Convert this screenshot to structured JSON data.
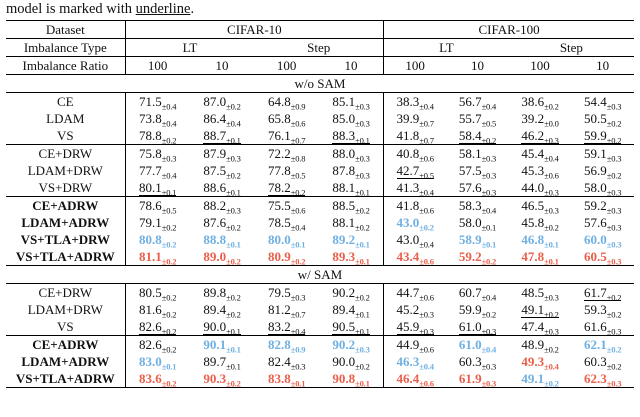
{
  "caption": {
    "prefix": "model is marked with ",
    "underlined_word": "underline",
    "suffix": "."
  },
  "colors": {
    "best": "#eb5e49",
    "second": "#6fb0e3"
  },
  "header": {
    "dataset_label": "Dataset",
    "datasets": [
      "CIFAR-10",
      "CIFAR-100"
    ],
    "imbalance_type_label": "Imbalance Type",
    "imbalance_types": [
      "LT",
      "Step",
      "LT",
      "Step"
    ],
    "imbalance_ratio_label": "Imbalance Ratio",
    "imbalance_ratios": [
      "100",
      "10",
      "100",
      "10",
      "100",
      "10",
      "100",
      "10"
    ]
  },
  "sections": [
    {
      "title": "w/o SAM",
      "groups": [
        {
          "rows": [
            {
              "label": "CE",
              "bold": false,
              "cells": [
                {
                  "v": "71.5",
                  "e": "0.4",
                  "m": ""
                },
                {
                  "v": "87.0",
                  "e": "0.2",
                  "m": ""
                },
                {
                  "v": "64.8",
                  "e": "0.9",
                  "m": ""
                },
                {
                  "v": "85.1",
                  "e": "0.3",
                  "m": ""
                },
                {
                  "v": "38.3",
                  "e": "0.4",
                  "m": ""
                },
                {
                  "v": "56.7",
                  "e": "0.4",
                  "m": ""
                },
                {
                  "v": "38.6",
                  "e": "0.2",
                  "m": ""
                },
                {
                  "v": "54.4",
                  "e": "0.3",
                  "m": ""
                }
              ]
            },
            {
              "label": "LDAM",
              "bold": false,
              "cells": [
                {
                  "v": "73.8",
                  "e": "0.4",
                  "m": ""
                },
                {
                  "v": "86.4",
                  "e": "0.4",
                  "m": ""
                },
                {
                  "v": "65.8",
                  "e": "0.6",
                  "m": ""
                },
                {
                  "v": "85.0",
                  "e": "0.3",
                  "m": ""
                },
                {
                  "v": "39.9",
                  "e": "0.7",
                  "m": ""
                },
                {
                  "v": "55.7",
                  "e": "0.5",
                  "m": ""
                },
                {
                  "v": "39.2",
                  "e": "0.0",
                  "m": ""
                },
                {
                  "v": "50.5",
                  "e": "0.2",
                  "m": ""
                }
              ]
            },
            {
              "label": "VS",
              "bold": false,
              "cells": [
                {
                  "v": "78.8",
                  "e": "0.2",
                  "m": ""
                },
                {
                  "v": "88.7",
                  "e": "0.1",
                  "m": "u"
                },
                {
                  "v": "76.1",
                  "e": "0.7",
                  "m": ""
                },
                {
                  "v": "88.3",
                  "e": "0.1",
                  "m": "u"
                },
                {
                  "v": "41.8",
                  "e": "0.7",
                  "m": ""
                },
                {
                  "v": "58.4",
                  "e": "0.2",
                  "m": "u"
                },
                {
                  "v": "46.2",
                  "e": "0.3",
                  "m": "u"
                },
                {
                  "v": "59.9",
                  "e": "0.2",
                  "m": "u"
                }
              ]
            }
          ]
        },
        {
          "rows": [
            {
              "label": "CE+DRW",
              "bold": false,
              "cells": [
                {
                  "v": "75.8",
                  "e": "0.3",
                  "m": ""
                },
                {
                  "v": "87.9",
                  "e": "0.3",
                  "m": ""
                },
                {
                  "v": "72.2",
                  "e": "0.8",
                  "m": ""
                },
                {
                  "v": "88.0",
                  "e": "0.3",
                  "m": ""
                },
                {
                  "v": "40.8",
                  "e": "0.6",
                  "m": ""
                },
                {
                  "v": "58.1",
                  "e": "0.3",
                  "m": ""
                },
                {
                  "v": "45.4",
                  "e": "0.4",
                  "m": ""
                },
                {
                  "v": "59.1",
                  "e": "0.3",
                  "m": ""
                }
              ]
            },
            {
              "label": "LDAM+DRW",
              "bold": false,
              "cells": [
                {
                  "v": "77.7",
                  "e": "0.4",
                  "m": ""
                },
                {
                  "v": "87.5",
                  "e": "0.2",
                  "m": ""
                },
                {
                  "v": "77.8",
                  "e": "0.5",
                  "m": ""
                },
                {
                  "v": "87.8",
                  "e": "0.3",
                  "m": ""
                },
                {
                  "v": "42.7",
                  "e": "0.5",
                  "m": "u"
                },
                {
                  "v": "57.5",
                  "e": "0.3",
                  "m": ""
                },
                {
                  "v": "45.3",
                  "e": "0.6",
                  "m": ""
                },
                {
                  "v": "56.9",
                  "e": "0.2",
                  "m": ""
                }
              ]
            },
            {
              "label": "VS+DRW",
              "bold": false,
              "cells": [
                {
                  "v": "80.1",
                  "e": "0.1",
                  "m": "u"
                },
                {
                  "v": "88.6",
                  "e": "0.1",
                  "m": ""
                },
                {
                  "v": "78.2",
                  "e": "0.2",
                  "m": "u"
                },
                {
                  "v": "88.1",
                  "e": "0.1",
                  "m": ""
                },
                {
                  "v": "41.3",
                  "e": "0.4",
                  "m": ""
                },
                {
                  "v": "57.6",
                  "e": "0.3",
                  "m": ""
                },
                {
                  "v": "44.0",
                  "e": "0.3",
                  "m": ""
                },
                {
                  "v": "58.0",
                  "e": "0.3",
                  "m": ""
                }
              ]
            }
          ]
        },
        {
          "rows": [
            {
              "label": "CE+ADRW",
              "bold": true,
              "cells": [
                {
                  "v": "78.6",
                  "e": "0.5",
                  "m": ""
                },
                {
                  "v": "88.2",
                  "e": "0.3",
                  "m": ""
                },
                {
                  "v": "75.5",
                  "e": "0.6",
                  "m": ""
                },
                {
                  "v": "88.5",
                  "e": "0.2",
                  "m": ""
                },
                {
                  "v": "41.8",
                  "e": "0.6",
                  "m": ""
                },
                {
                  "v": "58.3",
                  "e": "0.4",
                  "m": ""
                },
                {
                  "v": "46.5",
                  "e": "0.3",
                  "m": ""
                },
                {
                  "v": "59.2",
                  "e": "0.3",
                  "m": ""
                }
              ]
            },
            {
              "label": "LDAM+ADRW",
              "bold": true,
              "cells": [
                {
                  "v": "79.1",
                  "e": "0.2",
                  "m": ""
                },
                {
                  "v": "87.6",
                  "e": "0.2",
                  "m": ""
                },
                {
                  "v": "78.5",
                  "e": "0.4",
                  "m": ""
                },
                {
                  "v": "88.1",
                  "e": "0.2",
                  "m": ""
                },
                {
                  "v": "43.0",
                  "e": "0.2",
                  "m": "second"
                },
                {
                  "v": "58.0",
                  "e": "0.1",
                  "m": ""
                },
                {
                  "v": "45.8",
                  "e": "0.2",
                  "m": ""
                },
                {
                  "v": "57.6",
                  "e": "0.3",
                  "m": ""
                }
              ]
            },
            {
              "label": "VS+TLA+DRW",
              "bold": true,
              "cells": [
                {
                  "v": "80.8",
                  "e": "0.2",
                  "m": "second"
                },
                {
                  "v": "88.8",
                  "e": "0.1",
                  "m": "second"
                },
                {
                  "v": "80.0",
                  "e": "0.1",
                  "m": "second"
                },
                {
                  "v": "89.2",
                  "e": "0.1",
                  "m": "second"
                },
                {
                  "v": "43.0",
                  "e": "0.4",
                  "m": ""
                },
                {
                  "v": "58.9",
                  "e": "0.1",
                  "m": "second"
                },
                {
                  "v": "46.8",
                  "e": "0.1",
                  "m": "second"
                },
                {
                  "v": "60.0",
                  "e": "0.3",
                  "m": "second"
                }
              ]
            },
            {
              "label": "VS+TLA+ADRW",
              "bold": true,
              "cells": [
                {
                  "v": "81.1",
                  "e": "0.2",
                  "m": "best"
                },
                {
                  "v": "89.0",
                  "e": "0.2",
                  "m": "best"
                },
                {
                  "v": "80.9",
                  "e": "0.2",
                  "m": "best"
                },
                {
                  "v": "89.3",
                  "e": "0.1",
                  "m": "best"
                },
                {
                  "v": "43.4",
                  "e": "0.6",
                  "m": "best"
                },
                {
                  "v": "59.2",
                  "e": "0.2",
                  "m": "best"
                },
                {
                  "v": "47.8",
                  "e": "0.1",
                  "m": "best"
                },
                {
                  "v": "60.5",
                  "e": "0.3",
                  "m": "best"
                }
              ]
            }
          ]
        }
      ]
    },
    {
      "title": "w/ SAM",
      "groups": [
        {
          "rows": [
            {
              "label": "CE+DRW",
              "bold": false,
              "cells": [
                {
                  "v": "80.5",
                  "e": "0.2",
                  "m": ""
                },
                {
                  "v": "89.8",
                  "e": "0.2",
                  "m": ""
                },
                {
                  "v": "79.5",
                  "e": "0.3",
                  "m": ""
                },
                {
                  "v": "90.2",
                  "e": "0.2",
                  "m": ""
                },
                {
                  "v": "44.7",
                  "e": "0.6",
                  "m": ""
                },
                {
                  "v": "60.7",
                  "e": "0.4",
                  "m": ""
                },
                {
                  "v": "48.5",
                  "e": "0.3",
                  "m": ""
                },
                {
                  "v": "61.7",
                  "e": "0.2",
                  "m": "u"
                }
              ]
            },
            {
              "label": "LDAM+DRW",
              "bold": false,
              "cells": [
                {
                  "v": "81.6",
                  "e": "0.2",
                  "m": ""
                },
                {
                  "v": "89.4",
                  "e": "0.2",
                  "m": ""
                },
                {
                  "v": "81.2",
                  "e": "0.7",
                  "m": ""
                },
                {
                  "v": "89.4",
                  "e": "0.1",
                  "m": ""
                },
                {
                  "v": "45.2",
                  "e": "0.3",
                  "m": ""
                },
                {
                  "v": "59.9",
                  "e": "0.2",
                  "m": ""
                },
                {
                  "v": "49.1",
                  "e": "0.2",
                  "m": "u"
                },
                {
                  "v": "59.3",
                  "e": "0.2",
                  "m": ""
                }
              ]
            },
            {
              "label": "VS",
              "bold": false,
              "cells": [
                {
                  "v": "82.6",
                  "e": "0.2",
                  "m": "u"
                },
                {
                  "v": "90.0",
                  "e": "0.1",
                  "m": "u"
                },
                {
                  "v": "83.2",
                  "e": "0.4",
                  "m": "u"
                },
                {
                  "v": "90.5",
                  "e": "0.1",
                  "m": "u"
                },
                {
                  "v": "45.9",
                  "e": "0.3",
                  "m": "u"
                },
                {
                  "v": "61.0",
                  "e": "0.3",
                  "m": "u"
                },
                {
                  "v": "47.4",
                  "e": "0.3",
                  "m": ""
                },
                {
                  "v": "61.6",
                  "e": "0.3",
                  "m": ""
                }
              ]
            }
          ]
        },
        {
          "rows": [
            {
              "label": "CE+ADRW",
              "bold": true,
              "cells": [
                {
                  "v": "82.6",
                  "e": "0.2",
                  "m": ""
                },
                {
                  "v": "90.1",
                  "e": "0.1",
                  "m": "second"
                },
                {
                  "v": "82.8",
                  "e": "0.9",
                  "m": "second"
                },
                {
                  "v": "90.2",
                  "e": "0.3",
                  "m": "second"
                },
                {
                  "v": "44.9",
                  "e": "0.6",
                  "m": ""
                },
                {
                  "v": "61.0",
                  "e": "0.4",
                  "m": "second"
                },
                {
                  "v": "48.9",
                  "e": "0.2",
                  "m": ""
                },
                {
                  "v": "62.1",
                  "e": "0.2",
                  "m": "second"
                }
              ]
            },
            {
              "label": "LDAM+ADRW",
              "bold": true,
              "cells": [
                {
                  "v": "83.0",
                  "e": "0.1",
                  "m": "second"
                },
                {
                  "v": "89.7",
                  "e": "0.1",
                  "m": ""
                },
                {
                  "v": "82.4",
                  "e": "0.3",
                  "m": ""
                },
                {
                  "v": "90.0",
                  "e": "0.2",
                  "m": ""
                },
                {
                  "v": "46.3",
                  "e": "0.4",
                  "m": "second"
                },
                {
                  "v": "60.3",
                  "e": "0.3",
                  "m": ""
                },
                {
                  "v": "49.3",
                  "e": "0.4",
                  "m": "best"
                },
                {
                  "v": "60.3",
                  "e": "0.2",
                  "m": ""
                }
              ]
            },
            {
              "label": "VS+TLA+ADRW",
              "bold": true,
              "cells": [
                {
                  "v": "83.6",
                  "e": "0.2",
                  "m": "best"
                },
                {
                  "v": "90.3",
                  "e": "0.2",
                  "m": "best"
                },
                {
                  "v": "83.8",
                  "e": "0.1",
                  "m": "best"
                },
                {
                  "v": "90.8",
                  "e": "0.1",
                  "m": "best"
                },
                {
                  "v": "46.4",
                  "e": "0.6",
                  "m": "best"
                },
                {
                  "v": "61.9",
                  "e": "0.3",
                  "m": "best"
                },
                {
                  "v": "49.1",
                  "e": "0.2",
                  "m": "second"
                },
                {
                  "v": "62.3",
                  "e": "0.3",
                  "m": "best"
                }
              ]
            }
          ]
        }
      ]
    }
  ]
}
